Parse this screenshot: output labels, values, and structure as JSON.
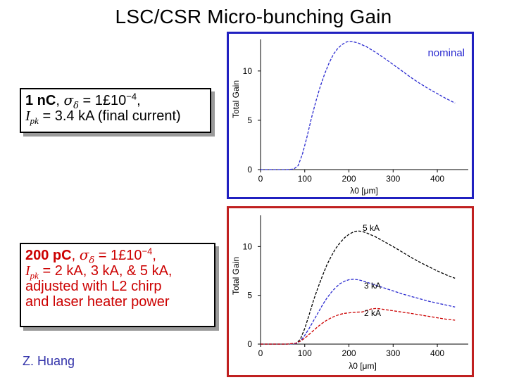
{
  "slide": {
    "title": "LSC/CSR Micro-bunching Gain",
    "author": "Z. Huang"
  },
  "box1": {
    "charge": "1 nC",
    "sigma_sym": "σ",
    "sigma_sub": "δ",
    "eq": " = 1£10",
    "exp": "−4",
    "comma": ",",
    "ipk_sym": "I",
    "ipk_sub": "pk",
    "ipk_rest": " = 3.4 kA (final current)"
  },
  "box2": {
    "charge": "200 pC",
    "sigma_sym": "σ",
    "sigma_sub": "δ",
    "eq": " = 1£10",
    "exp": "−4",
    "comma": ",",
    "ipk_sym": "I",
    "ipk_sub": "pk",
    "ipk_rest": " = 2 kA, 3 kA, & 5 kA,",
    "line3": "adjusted with L2 chirp",
    "line4": "and laser heater power"
  },
  "chart_data": [
    {
      "type": "line",
      "title": "nominal",
      "xlabel": "λ0 [μm]",
      "ylabel": "Total Gain",
      "xlim": [
        0,
        470
      ],
      "ylim": [
        0,
        13.2
      ],
      "xticks": [
        0,
        100,
        200,
        300,
        400
      ],
      "yticks": [
        0,
        5,
        10
      ],
      "xtick_labels": [
        "0",
        "100",
        "200",
        "300",
        "400"
      ],
      "ytick_labels": [
        "0",
        "5",
        "10"
      ],
      "series": [
        {
          "name": "nominal",
          "color": "#2a2ad0",
          "x": [
            0,
            30,
            60,
            75,
            85,
            95,
            105,
            115,
            125,
            135,
            145,
            155,
            165,
            175,
            185,
            195,
            205,
            220,
            240,
            260,
            280,
            300,
            320,
            340,
            360,
            380,
            400,
            420,
            440
          ],
          "y": [
            0,
            0,
            0,
            0.05,
            0.4,
            1.6,
            3.3,
            5.2,
            6.9,
            8.4,
            9.7,
            10.8,
            11.7,
            12.3,
            12.7,
            12.95,
            13.0,
            12.85,
            12.45,
            11.9,
            11.3,
            10.65,
            10.0,
            9.35,
            8.75,
            8.2,
            7.7,
            7.2,
            6.75
          ]
        }
      ]
    },
    {
      "type": "line",
      "title": "",
      "xlabel": "λ0 [μm]",
      "ylabel": "Total Gain",
      "xlim": [
        0,
        470
      ],
      "ylim": [
        0,
        13.2
      ],
      "xticks": [
        0,
        100,
        200,
        300,
        400
      ],
      "yticks": [
        0,
        5,
        10
      ],
      "xtick_labels": [
        "0",
        "100",
        "200",
        "300",
        "400"
      ],
      "ytick_labels": [
        "0",
        "5",
        "10"
      ],
      "series": [
        {
          "name": "5 kA",
          "color": "#000000",
          "x": [
            0,
            60,
            80,
            90,
            100,
            110,
            120,
            130,
            140,
            150,
            160,
            170,
            180,
            190,
            200,
            210,
            220,
            230,
            240,
            260,
            280,
            300,
            320,
            340,
            360,
            380,
            400,
            420,
            440
          ],
          "y": [
            0,
            0,
            0.05,
            0.5,
            1.6,
            3.0,
            4.5,
            5.8,
            7.0,
            8.1,
            9.0,
            9.8,
            10.4,
            10.9,
            11.25,
            11.5,
            11.6,
            11.55,
            11.4,
            11.0,
            10.5,
            10.0,
            9.45,
            8.9,
            8.4,
            7.95,
            7.5,
            7.1,
            6.75
          ]
        },
        {
          "name": "3 kA",
          "color": "#2a2ad0",
          "x": [
            0,
            60,
            80,
            90,
            100,
            110,
            120,
            130,
            140,
            150,
            160,
            170,
            180,
            190,
            200,
            210,
            220,
            230,
            240,
            260,
            280,
            300,
            320,
            340,
            360,
            380,
            400,
            420,
            440
          ],
          "y": [
            0,
            0,
            0.05,
            0.3,
            0.9,
            1.6,
            2.4,
            3.2,
            4.0,
            4.7,
            5.3,
            5.8,
            6.2,
            6.45,
            6.6,
            6.65,
            6.6,
            6.5,
            6.35,
            6.05,
            5.75,
            5.45,
            5.15,
            4.9,
            4.65,
            4.4,
            4.2,
            4.0,
            3.8
          ]
        },
        {
          "name": "2 kA",
          "color": "#cc0000",
          "x": [
            0,
            60,
            80,
            90,
            100,
            110,
            120,
            130,
            140,
            150,
            160,
            170,
            180,
            190,
            200,
            210,
            220,
            230,
            240,
            250,
            260,
            270,
            280,
            300,
            320,
            340,
            360,
            380,
            400,
            420,
            440
          ],
          "y": [
            0,
            0,
            0.1,
            0.3,
            0.6,
            1.0,
            1.4,
            1.8,
            2.15,
            2.45,
            2.7,
            2.9,
            3.05,
            3.15,
            3.2,
            3.25,
            3.28,
            3.3,
            3.45,
            3.6,
            3.65,
            3.62,
            3.55,
            3.42,
            3.28,
            3.15,
            3.0,
            2.85,
            2.7,
            2.55,
            2.45
          ]
        }
      ],
      "labels": [
        "5 kA",
        "3 kA",
        "2 kA"
      ]
    }
  ]
}
